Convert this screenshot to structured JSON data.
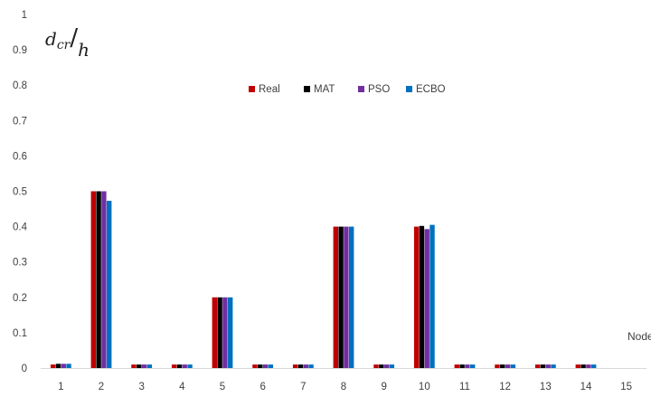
{
  "chart_data": {
    "type": "bar",
    "xlabel": "Node",
    "ylabel": {
      "main": "d",
      "subscript": "cr",
      "divisor": "h"
    },
    "ylim": [
      0,
      1
    ],
    "yticks": [
      0,
      0.1,
      0.2,
      0.3,
      0.4,
      0.5,
      0.6,
      0.7,
      0.8,
      0.9,
      1
    ],
    "ytick_labels": [
      "0",
      "0.1",
      "0.2",
      "0.3",
      "0.4",
      "0.5",
      "0.6",
      "0.7",
      "0.8",
      "0.9",
      "1"
    ],
    "categories": [
      "1",
      "2",
      "3",
      "4",
      "5",
      "6",
      "7",
      "8",
      "9",
      "10",
      "11",
      "12",
      "13",
      "14",
      "15"
    ],
    "legend_position": "top-center",
    "grid": false,
    "series": [
      {
        "name": "Real",
        "color": "#c00000",
        "values": [
          0.01,
          0.5,
          0.01,
          0.01,
          0.2,
          0.01,
          0.01,
          0.4,
          0.01,
          0.4,
          0.01,
          0.01,
          0.01,
          0.01,
          0
        ]
      },
      {
        "name": "MAT",
        "color": "#000000",
        "values": [
          0.012,
          0.5,
          0.01,
          0.01,
          0.2,
          0.01,
          0.01,
          0.4,
          0.01,
          0.402,
          0.01,
          0.01,
          0.01,
          0.01,
          0
        ]
      },
      {
        "name": "PSO",
        "color": "#7030a0",
        "values": [
          0.012,
          0.5,
          0.01,
          0.01,
          0.2,
          0.01,
          0.01,
          0.4,
          0.01,
          0.393,
          0.01,
          0.01,
          0.01,
          0.01,
          0
        ]
      },
      {
        "name": "ECBO",
        "color": "#0070c0",
        "values": [
          0.012,
          0.473,
          0.01,
          0.01,
          0.2,
          0.01,
          0.01,
          0.4,
          0.01,
          0.405,
          0.01,
          0.01,
          0.01,
          0.01,
          0
        ]
      }
    ]
  }
}
